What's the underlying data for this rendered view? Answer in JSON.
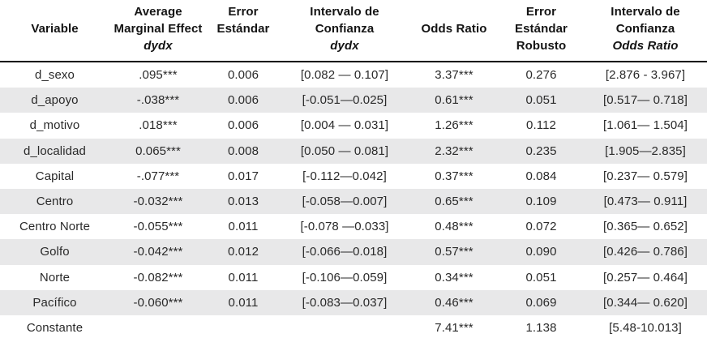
{
  "colors": {
    "background": "#ffffff",
    "stripe": "#e8e8e9",
    "header_rule": "#000000",
    "header_text": "#141414",
    "body_text": "#2a2a2a"
  },
  "table": {
    "columns": [
      {
        "id": "variable",
        "lines": [
          {
            "text": "Variable",
            "italic": false
          }
        ]
      },
      {
        "id": "ame-dydx",
        "lines": [
          {
            "text": "Average",
            "italic": false
          },
          {
            "text": "Marginal Effect",
            "italic": false
          },
          {
            "text": "dydx",
            "italic": true
          }
        ]
      },
      {
        "id": "error-estandar",
        "lines": [
          {
            "text": "Error",
            "italic": false
          },
          {
            "text": "Estándar",
            "italic": false
          }
        ]
      },
      {
        "id": "ic-dydx",
        "lines": [
          {
            "text": "Intervalo de",
            "italic": false
          },
          {
            "text": "Confianza",
            "italic": false
          },
          {
            "text": "dydx",
            "italic": true
          }
        ]
      },
      {
        "id": "odds-ratio",
        "lines": [
          {
            "text": "Odds Ratio",
            "italic": false
          }
        ]
      },
      {
        "id": "error-robusto",
        "lines": [
          {
            "text": "Error",
            "italic": false
          },
          {
            "text": "Estándar",
            "italic": false
          },
          {
            "text": "Robusto",
            "italic": false
          }
        ]
      },
      {
        "id": "ic-odds-ratio",
        "lines": [
          {
            "text": "Intervalo de",
            "italic": false
          },
          {
            "text": "Confianza",
            "italic": false
          },
          {
            "text": "Odds Ratio",
            "italic": true
          }
        ]
      }
    ],
    "rows": [
      {
        "cells": [
          "d_sexo",
          ".095***",
          "0.006",
          "[0.082 — 0.107]",
          "3.37***",
          "0.276",
          "[2.876 - 3.967]"
        ]
      },
      {
        "cells": [
          "d_apoyo",
          "-.038***",
          "0.006",
          "[-0.051—0.025]",
          "0.61***",
          "0.051",
          "[0.517— 0.718]"
        ]
      },
      {
        "cells": [
          "d_motivo",
          ".018***",
          "0.006",
          "[0.004 — 0.031]",
          "1.26***",
          "0.112",
          "[1.061— 1.504]"
        ]
      },
      {
        "cells": [
          "d_localidad",
          "0.065***",
          "0.008",
          "[0.050 — 0.081]",
          "2.32***",
          "0.235",
          "[1.905—2.835]"
        ]
      },
      {
        "cells": [
          "Capital",
          "-.077***",
          "0.017",
          "[-0.112—0.042]",
          "0.37***",
          "0.084",
          "[0.237— 0.579]"
        ]
      },
      {
        "cells": [
          "Centro",
          "-0.032***",
          "0.013",
          "[-0.058—0.007]",
          "0.65***",
          "0.109",
          "[0.473— 0.911]"
        ]
      },
      {
        "cells": [
          "Centro Norte",
          "-0.055***",
          "0.011",
          "[-0.078 —0.033]",
          "0.48***",
          "0.072",
          "[0.365— 0.652]"
        ]
      },
      {
        "cells": [
          "Golfo",
          "-0.042***",
          "0.012",
          "[-0.066—0.018]",
          "0.57***",
          "0.090",
          "[0.426— 0.786]"
        ]
      },
      {
        "cells": [
          "Norte",
          "-0.082***",
          "0.011",
          "[-0.106—0.059]",
          "0.34***",
          "0.051",
          "[0.257— 0.464]"
        ]
      },
      {
        "cells": [
          "Pacífico",
          "-0.060***",
          "0.011",
          "[-0.083—0.037]",
          "0.46***",
          "0.069",
          "[0.344— 0.620]"
        ]
      },
      {
        "cells": [
          "Constante",
          "",
          "",
          "",
          "7.41***",
          "1.138",
          "[5.48-10.013]"
        ]
      }
    ]
  }
}
